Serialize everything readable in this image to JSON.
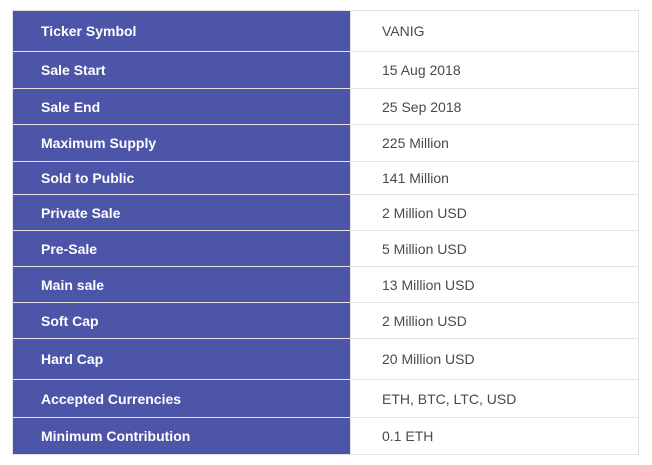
{
  "table": {
    "rows": [
      {
        "label": "Ticker Symbol",
        "value": "VANIG"
      },
      {
        "label": "Sale Start",
        "value": "15 Aug 2018"
      },
      {
        "label": "Sale End",
        "value": "25 Sep 2018"
      },
      {
        "label": "Maximum Supply",
        "value": "225 Million"
      },
      {
        "label": "Sold to Public",
        "value": "141 Million"
      },
      {
        "label": "Private Sale",
        "value": "2 Million USD"
      },
      {
        "label": "Pre-Sale",
        "value": "5 Million USD"
      },
      {
        "label": "Main sale",
        "value": "13 Million USD"
      },
      {
        "label": "Soft Cap",
        "value": "2 Million USD"
      },
      {
        "label": "Hard Cap",
        "value": "20 Million USD"
      },
      {
        "label": "Accepted Currencies",
        "value": "ETH, BTC, LTC, USD"
      },
      {
        "label": "Minimum Contribution",
        "value": "0.1 ETH"
      }
    ]
  },
  "colors": {
    "label_background": "#4d55a8",
    "label_text": "#ffffff",
    "value_text": "#4a4a4a",
    "border": "#e2e2e6"
  }
}
